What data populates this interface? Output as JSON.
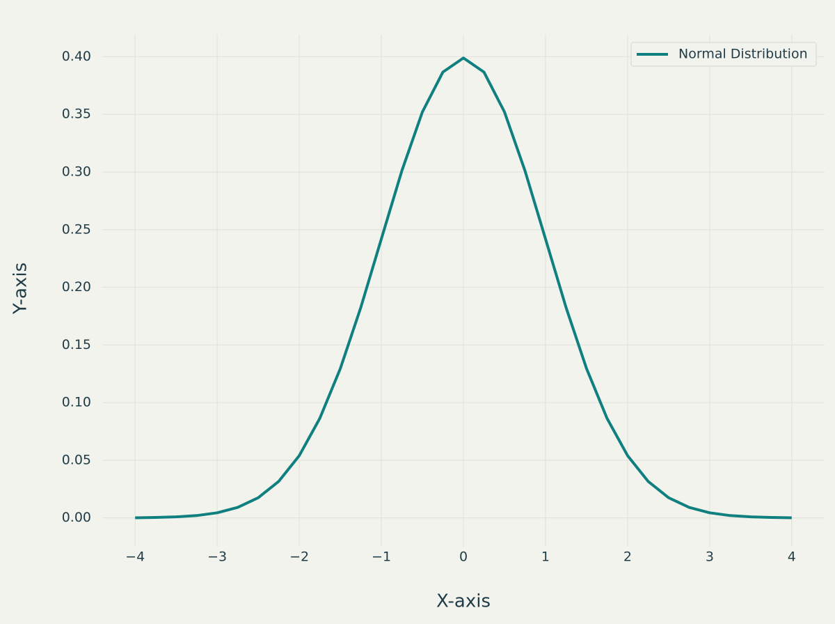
{
  "chart_data": {
    "type": "line",
    "x_label": "X-axis",
    "y_label": "Y-axis",
    "x": [
      -4,
      -3.75,
      -3.5,
      -3.25,
      -3,
      -2.75,
      -2.5,
      -2.25,
      -2,
      -1.75,
      -1.5,
      -1.25,
      -1,
      -0.75,
      -0.5,
      -0.25,
      0,
      0.25,
      0.5,
      0.75,
      1,
      1.25,
      1.5,
      1.75,
      2,
      2.25,
      2.5,
      2.75,
      3,
      3.25,
      3.5,
      3.75,
      4
    ],
    "series": [
      {
        "name": "Normal Distribution",
        "color": "#0f7f7f",
        "values": [
          0.0001,
          0.0004,
          0.0009,
          0.002,
          0.0044,
          0.0091,
          0.0175,
          0.0317,
          0.054,
          0.0863,
          0.1295,
          0.1826,
          0.242,
          0.3011,
          0.3521,
          0.3867,
          0.3989,
          0.3867,
          0.3521,
          0.3011,
          0.242,
          0.1826,
          0.1295,
          0.0863,
          0.054,
          0.0317,
          0.0175,
          0.0091,
          0.0044,
          0.002,
          0.0009,
          0.0004,
          0.0001
        ]
      }
    ],
    "xlim": [
      -4.4,
      4.4
    ],
    "ylim": [
      -0.025,
      0.419
    ],
    "xticks": [
      {
        "value": -4,
        "label": "−4"
      },
      {
        "value": -3,
        "label": "−3"
      },
      {
        "value": -2,
        "label": "−2"
      },
      {
        "value": -1,
        "label": "−1"
      },
      0,
      1,
      2,
      3,
      4
    ],
    "yticks": [
      {
        "value": 0,
        "label": "0.00"
      },
      {
        "value": 0.05,
        "label": "0.05"
      },
      {
        "value": 0.1,
        "label": "0.10"
      },
      {
        "value": 0.15,
        "label": "0.15"
      },
      {
        "value": 0.2,
        "label": "0.20"
      },
      {
        "value": 0.25,
        "label": "0.25"
      },
      {
        "value": 0.3,
        "label": "0.30"
      },
      {
        "value": 0.35,
        "label": "0.35"
      },
      {
        "value": 0.4,
        "label": "0.40"
      }
    ],
    "grid": true,
    "legend": "upper right"
  }
}
